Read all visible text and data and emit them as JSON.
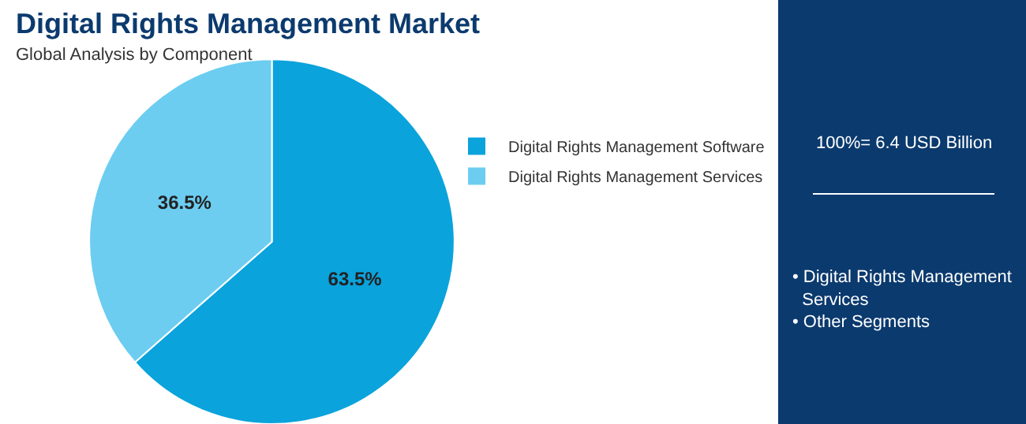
{
  "chart_data": {
    "type": "pie",
    "title": "Digital Rights Management Market",
    "subtitle": "Global Analysis by Component",
    "categories": [
      "Digital Rights Management Software",
      "Digital Rights Management Services"
    ],
    "values": [
      63.5,
      36.5
    ],
    "colors": [
      "#0aa3dc",
      "#6ccdf1"
    ],
    "value_labels": [
      "63.5%",
      "36.5%"
    ],
    "legend": "right",
    "annotations": [
      "100%= 6.4 USD Billion",
      "• Digital Rights Management Services",
      "• Other Segments"
    ]
  }
}
